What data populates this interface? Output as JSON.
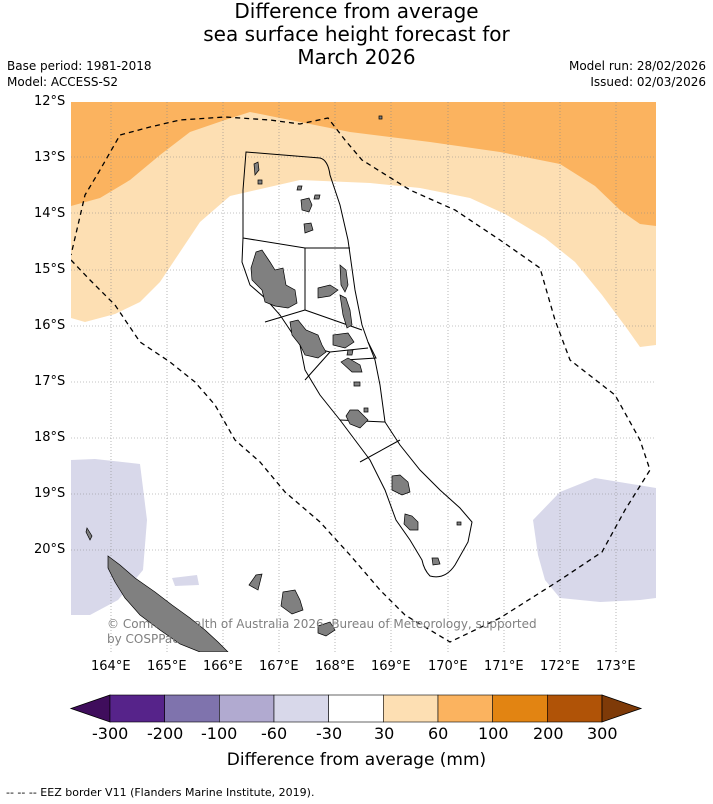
{
  "title": {
    "line1": "Difference from average",
    "line2": "sea surface height forecast for",
    "line3": "March 2026"
  },
  "meta": {
    "base_period": "Base period: 1981-2018",
    "model": "Model: ACCESS-S2",
    "model_run": "Model run: 28/02/2026",
    "issued": "Issued: 02/03/2026"
  },
  "map": {
    "latitude_labels": [
      "12°S",
      "13°S",
      "14°S",
      "15°S",
      "16°S",
      "17°S",
      "18°S",
      "19°S",
      "20°S"
    ],
    "longitude_labels": [
      "164°E",
      "165°E",
      "166°E",
      "167°E",
      "168°E",
      "169°E",
      "170°E",
      "171°E",
      "172°E",
      "173°E"
    ],
    "copyright_line1": "© Commonwealth of Australia 2026, Bureau of Meteorology, supported",
    "copyright_line2": "by COSPPac",
    "colors": {
      "land": "#808080",
      "anom_60_100": "#fbb35f",
      "anom_30_60": "#fddfb3",
      "anom_neg60_neg30": "#d8d8ea",
      "neutral": "#ffffff",
      "grid": "#888888"
    }
  },
  "colorbar": {
    "title": "Difference from average (mm)",
    "ticks": [
      "-300",
      "-200",
      "-100",
      "-60",
      "-30",
      "30",
      "60",
      "100",
      "200",
      "300"
    ],
    "colors": [
      "#3f0d5c",
      "#56238a",
      "#7f73ad",
      "#b1aad0",
      "#d8d8ea",
      "#ffffff",
      "#fddfb3",
      "#fbb35f",
      "#e28412",
      "#b05307",
      "#7e3a08"
    ]
  },
  "footnote": "--  --  -- EEZ border V11 (Flanders Marine Institute, 2019)."
}
